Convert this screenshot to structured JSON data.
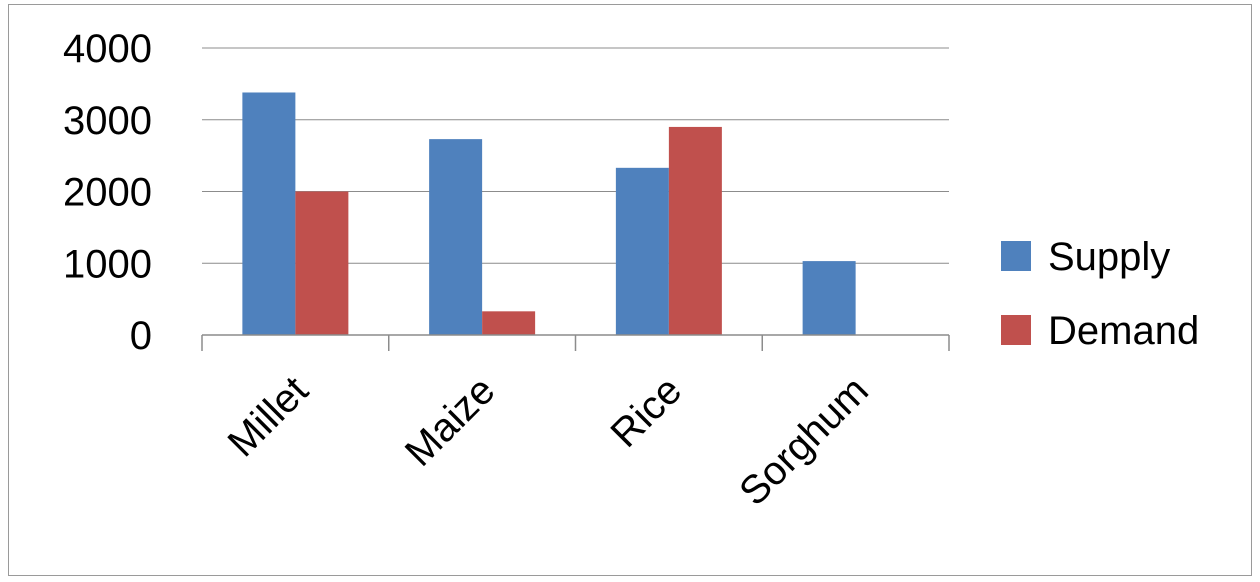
{
  "chart_data": {
    "type": "bar",
    "categories": [
      "Millet",
      "Maize",
      "Rice",
      "Sorghum"
    ],
    "series": [
      {
        "name": "Supply",
        "values": [
          3380,
          2730,
          2330,
          1030
        ],
        "color": "#4F81BD"
      },
      {
        "name": "Demand",
        "values": [
          2000,
          330,
          2900,
          0
        ],
        "color": "#C0504D"
      }
    ],
    "yticks": [
      "0",
      "1000",
      "2000",
      "3000",
      "4000"
    ],
    "ylim": [
      0,
      4000
    ],
    "grid": true,
    "legend_position": "right"
  }
}
